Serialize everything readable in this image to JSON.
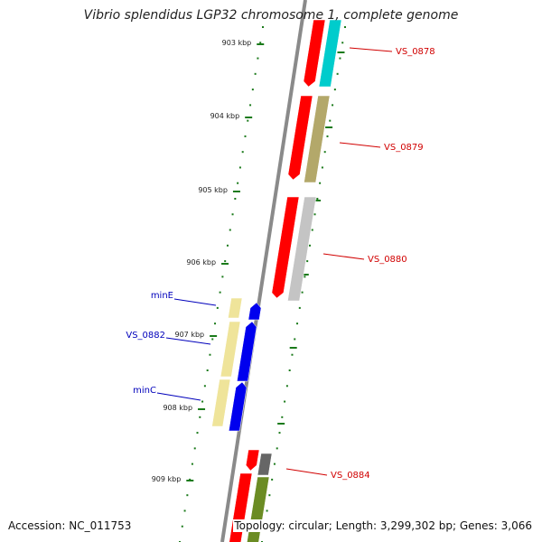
{
  "title": "Vibrio splendidus LGP32 chromosome 1, complete genome",
  "footer": {
    "accession": "Accession: NC_011753",
    "summary": "Topology: circular; Length: 3,299,302 bp; Genes: 3,066"
  },
  "colors": {
    "backbone": "#8a8a8a",
    "tick": "#1a7a1a",
    "forward_label": "#d10000",
    "reverse_label": "#0000bb"
  },
  "ticks": [
    "903 kbp",
    "904 kbp",
    "905 kbp",
    "906 kbp",
    "907 kbp",
    "908 kbp",
    "909 kbp"
  ],
  "genes": [
    {
      "label": "VS_0878",
      "strand": "forward",
      "color": "#ff0000",
      "cog_color": "#00cccc"
    },
    {
      "label": "VS_0879",
      "strand": "forward",
      "color": "#ff0000",
      "cog_color": "#b3a86a"
    },
    {
      "label": "VS_0880",
      "strand": "forward",
      "color": "#ff0000",
      "cog_color": "#c4c4c4"
    },
    {
      "label": "minE",
      "strand": "reverse",
      "color": "#0000ee",
      "cog_color": "#efe49a"
    },
    {
      "label": "VS_0882",
      "strand": "reverse",
      "color": "#0000ee",
      "cog_color": "#efe49a"
    },
    {
      "label": "minC",
      "strand": "reverse",
      "color": "#0000ee",
      "cog_color": "#efe49a"
    },
    {
      "label": "VS_0884",
      "strand": "forward",
      "color": "#ff0000",
      "cog_color": "#666666"
    },
    {
      "label": "",
      "strand": "forward",
      "color": "#ff0000",
      "cog_color": "#6b8c24"
    }
  ]
}
